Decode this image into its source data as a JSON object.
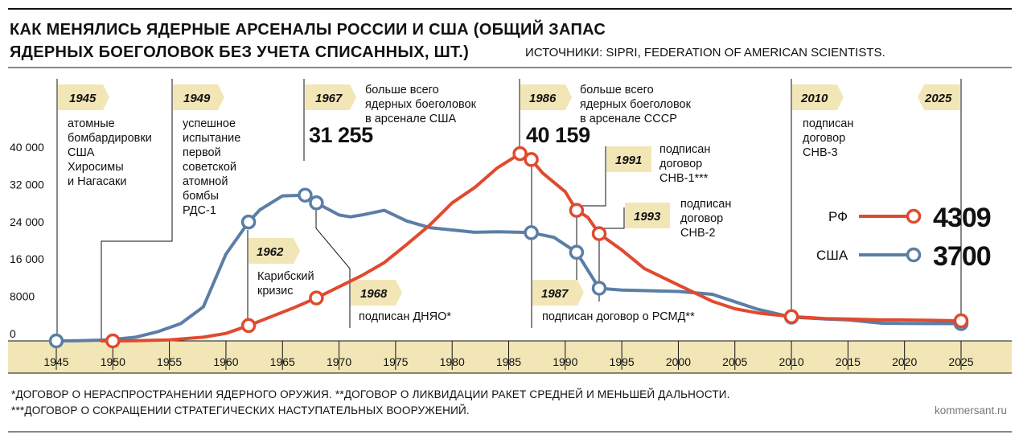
{
  "header": {
    "title_line1": "КАК МЕНЯЛИСЬ ЯДЕРНЫЕ АРСЕНАЛЫ РОССИИ И США (ОБЩИЙ ЗАПАС",
    "title_line2": "ЯДЕРНЫХ БОЕГОЛОВОК БЕЗ УЧЕТА СПИСАННЫХ, ШТ.)",
    "source": "ИСТОЧНИКИ: SIPRI, FEDERATION OF AMERICAN SCIENTISTS."
  },
  "colors": {
    "russia": "#E04A2E",
    "usa": "#5B7EA6",
    "axis_band": "#F2E6B7",
    "year_tag": "#F2E6B7"
  },
  "chart_data": {
    "type": "line",
    "xlim": [
      1943,
      2028
    ],
    "ylim": [
      0,
      42000
    ],
    "y_ticks": [
      {
        "value": 0,
        "label": "0"
      },
      {
        "value": 8000,
        "label": "8000"
      },
      {
        "value": 16000,
        "label": "16 000"
      },
      {
        "value": 24000,
        "label": "24 000"
      },
      {
        "value": 32000,
        "label": "32 000"
      },
      {
        "value": 40000,
        "label": "40 000"
      }
    ],
    "x_ticks": [
      {
        "value": 1945,
        "label": "1945"
      },
      {
        "value": 1950,
        "label": "1950"
      },
      {
        "value": 1955,
        "label": "1955"
      },
      {
        "value": 1960,
        "label": "1960"
      },
      {
        "value": 1965,
        "label": "1965"
      },
      {
        "value": 1970,
        "label": "1970"
      },
      {
        "value": 1975,
        "label": "1975"
      },
      {
        "value": 1980,
        "label": "1980"
      },
      {
        "value": 1985,
        "label": "1985"
      },
      {
        "value": 1990,
        "label": "1990"
      },
      {
        "value": 1995,
        "label": "1995"
      },
      {
        "value": 2000,
        "label": "2000"
      },
      {
        "value": 2005,
        "label": "2005"
      },
      {
        "value": 2010,
        "label": "2010"
      },
      {
        "value": 2015,
        "label": "2015"
      },
      {
        "value": 2020,
        "label": "2020"
      },
      {
        "value": 2025,
        "label": "2025"
      }
    ],
    "series": [
      {
        "name": "РФ",
        "color": "#E04A2E",
        "end_label": "4309",
        "points": [
          [
            1949,
            0
          ],
          [
            1950,
            5
          ],
          [
            1952,
            50
          ],
          [
            1955,
            200
          ],
          [
            1958,
            800
          ],
          [
            1960,
            1600
          ],
          [
            1962,
            3300
          ],
          [
            1964,
            5200
          ],
          [
            1966,
            7100
          ],
          [
            1968,
            9200
          ],
          [
            1970,
            11600
          ],
          [
            1972,
            14000
          ],
          [
            1974,
            16800
          ],
          [
            1976,
            20700
          ],
          [
            1978,
            24800
          ],
          [
            1980,
            29600
          ],
          [
            1982,
            32900
          ],
          [
            1984,
            37100
          ],
          [
            1986,
            40159
          ],
          [
            1987,
            38900
          ],
          [
            1988,
            36000
          ],
          [
            1990,
            32000
          ],
          [
            1991,
            28000
          ],
          [
            1992,
            26500
          ],
          [
            1993,
            23000
          ],
          [
            1995,
            19500
          ],
          [
            1997,
            15500
          ],
          [
            2000,
            12000
          ],
          [
            2003,
            8500
          ],
          [
            2005,
            6900
          ],
          [
            2007,
            6000
          ],
          [
            2010,
            5200
          ],
          [
            2013,
            4800
          ],
          [
            2015,
            4700
          ],
          [
            2018,
            4500
          ],
          [
            2020,
            4500
          ],
          [
            2025,
            4309
          ]
        ],
        "markers": [
          1950,
          1962,
          1968,
          1986,
          1987,
          1991,
          1993,
          2010,
          2025
        ]
      },
      {
        "name": "США",
        "color": "#5B7EA6",
        "end_label": "3700",
        "points": [
          [
            1945,
            2
          ],
          [
            1947,
            30
          ],
          [
            1949,
            170
          ],
          [
            1950,
            300
          ],
          [
            1952,
            800
          ],
          [
            1954,
            2000
          ],
          [
            1956,
            3700
          ],
          [
            1958,
            7300
          ],
          [
            1960,
            18600
          ],
          [
            1962,
            25500
          ],
          [
            1963,
            28100
          ],
          [
            1965,
            31100
          ],
          [
            1967,
            31255
          ],
          [
            1968,
            29600
          ],
          [
            1970,
            27000
          ],
          [
            1971,
            26600
          ],
          [
            1972,
            27000
          ],
          [
            1974,
            28000
          ],
          [
            1976,
            25700
          ],
          [
            1978,
            24300
          ],
          [
            1980,
            23800
          ],
          [
            1982,
            23300
          ],
          [
            1984,
            23400
          ],
          [
            1986,
            23300
          ],
          [
            1987,
            23200
          ],
          [
            1989,
            22200
          ],
          [
            1991,
            19000
          ],
          [
            1993,
            11300
          ],
          [
            1995,
            10900
          ],
          [
            2000,
            10600
          ],
          [
            2003,
            10000
          ],
          [
            2005,
            8400
          ],
          [
            2007,
            6800
          ],
          [
            2010,
            5100
          ],
          [
            2013,
            4700
          ],
          [
            2015,
            4500
          ],
          [
            2018,
            3800
          ],
          [
            2020,
            3750
          ],
          [
            2025,
            3700
          ]
        ],
        "markers": [
          1945,
          1962,
          1967,
          1968,
          1987,
          1991,
          1993,
          2010,
          2025
        ]
      }
    ]
  },
  "annotations": {
    "a1945": {
      "year": "1945",
      "lines": [
        "атомные",
        "бомбардировки",
        "США",
        "Хиросимы",
        "и Нагасаки"
      ]
    },
    "a1949": {
      "year": "1949",
      "lines": [
        "успешное",
        "испытание",
        "первой",
        "советской",
        "атомной",
        "бомбы",
        "РДС-1"
      ]
    },
    "a1962": {
      "year": "1962",
      "lines": [
        "Карибский",
        "кризис"
      ]
    },
    "a1967": {
      "year": "1967",
      "value": "31 255",
      "lines": [
        "больше всего",
        "ядерных боеголовок",
        "в арсенале США"
      ]
    },
    "a1968": {
      "year": "1968",
      "lines": [
        "подписан ДНЯО*"
      ]
    },
    "a1986": {
      "year": "1986",
      "value": "40 159",
      "lines": [
        "больше всего",
        "ядерных боеголовок",
        "в арсенале СССР"
      ]
    },
    "a1987": {
      "year": "1987",
      "lines": [
        "подписан договор о РСМД**"
      ]
    },
    "a1991": {
      "year": "1991",
      "lines": [
        "подписан",
        "договор",
        "СНВ-1***"
      ]
    },
    "a1993": {
      "year": "1993",
      "lines": [
        "подписан",
        "договор",
        "СНВ-2"
      ]
    },
    "a2010": {
      "year": "2010",
      "lines": [
        "подписан",
        "договор",
        "СНВ-3"
      ]
    },
    "a2025": {
      "year": "2025"
    }
  },
  "footer": {
    "note1": "*ДОГОВОР О НЕРАСПРОСТРАНЕНИИ ЯДЕРНОГО ОРУЖИЯ. **ДОГОВОР О ЛИКВИДАЦИИ РАКЕТ СРЕДНЕЙ И МЕНЬШЕЙ ДАЛЬНОСТИ.",
    "note2": "***ДОГОВОР О СОКРАЩЕНИИ СТРАТЕГИЧЕСКИХ НАСТУПАТЕЛЬНЫХ ВООРУЖЕНИЙ.",
    "site": "kommersant.ru"
  }
}
